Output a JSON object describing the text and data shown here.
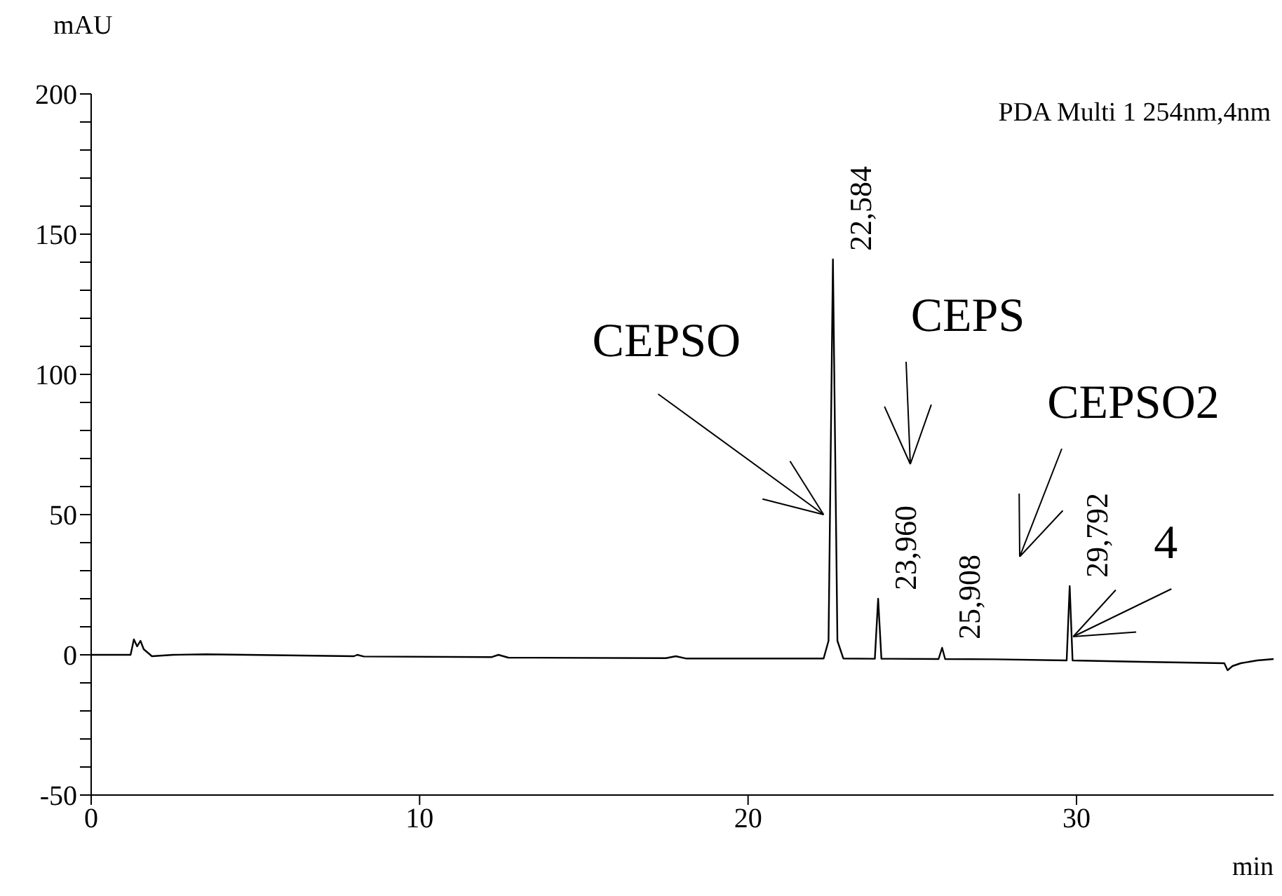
{
  "chart_data": {
    "type": "line",
    "xlabel": "min",
    "ylabel": "mAU",
    "x": [
      0,
      1.2,
      1.3,
      1.4,
      1.5,
      1.6,
      1.75,
      1.85,
      2.5,
      3.5,
      6,
      8,
      8.1,
      8.3,
      12.2,
      12.4,
      12.7,
      17.5,
      17.8,
      18.1,
      22.3,
      22.45,
      22.584,
      22.72,
      22.9,
      23.86,
      23.96,
      24.06,
      25.8,
      25.908,
      26.0,
      27.5,
      29.7,
      29.792,
      29.88,
      32,
      34.5,
      34.6,
      34.75,
      35,
      35.5,
      36
    ],
    "series": [
      {
        "color": "#000000",
        "values": [
          0,
          0,
          5.5,
          3,
          5,
          2,
          0.5,
          -0.5,
          0,
          0.2,
          -0.2,
          -0.5,
          0,
          -0.6,
          -0.8,
          0,
          -1,
          -1.2,
          -0.5,
          -1.3,
          -1.3,
          5,
          141,
          5,
          -1.3,
          -1.4,
          20,
          -1.4,
          -1.5,
          2.5,
          -1.5,
          -1.6,
          -2,
          24.5,
          -2,
          -2.5,
          -3,
          -5.5,
          -4,
          -3,
          -2,
          -1.5
        ]
      }
    ],
    "xlim": [
      0,
      36
    ],
    "xticks": [
      0,
      10,
      20,
      30
    ],
    "ylim": [
      -50,
      200
    ],
    "yticks": [
      -50,
      {
        "value": -40,
        "label": null
      },
      {
        "value": -30,
        "label": null
      },
      {
        "value": -20,
        "label": null
      },
      {
        "value": -10,
        "label": null
      },
      0,
      {
        "value": 10,
        "label": null
      },
      {
        "value": 20,
        "label": null
      },
      {
        "value": 30,
        "label": null
      },
      {
        "value": 40,
        "label": null
      },
      50,
      {
        "value": 60,
        "label": null
      },
      {
        "value": 70,
        "label": null
      },
      {
        "value": 80,
        "label": null
      },
      {
        "value": 90,
        "label": null
      },
      100,
      {
        "value": 110,
        "label": null
      },
      {
        "value": 120,
        "label": null
      },
      {
        "value": 130,
        "label": null
      },
      {
        "value": 140,
        "label": null
      },
      150,
      {
        "value": 160,
        "label": null
      },
      {
        "value": 170,
        "label": null
      },
      {
        "value": 180,
        "label": null
      },
      {
        "value": 190,
        "label": null
      },
      200
    ],
    "marker": "none",
    "line_style": "solid",
    "annotations": [
      "PDA Multi 1 254nm,4nm",
      {
        "text": "22,584",
        "x": 22.584,
        "y": 141
      },
      {
        "text": "23,960",
        "x": 23.96,
        "y": 20
      },
      {
        "text": "25,908",
        "x": 25.908,
        "y": 2.5
      },
      {
        "text": "29,792",
        "x": 29.792,
        "y": 24.5
      },
      {
        "text": "CEPSO",
        "x": 22.3,
        "y": 50
      },
      {
        "text": "4",
        "x": 29.9,
        "y": 6.5
      },
      "CEPS",
      "CEPSO2"
    ]
  }
}
